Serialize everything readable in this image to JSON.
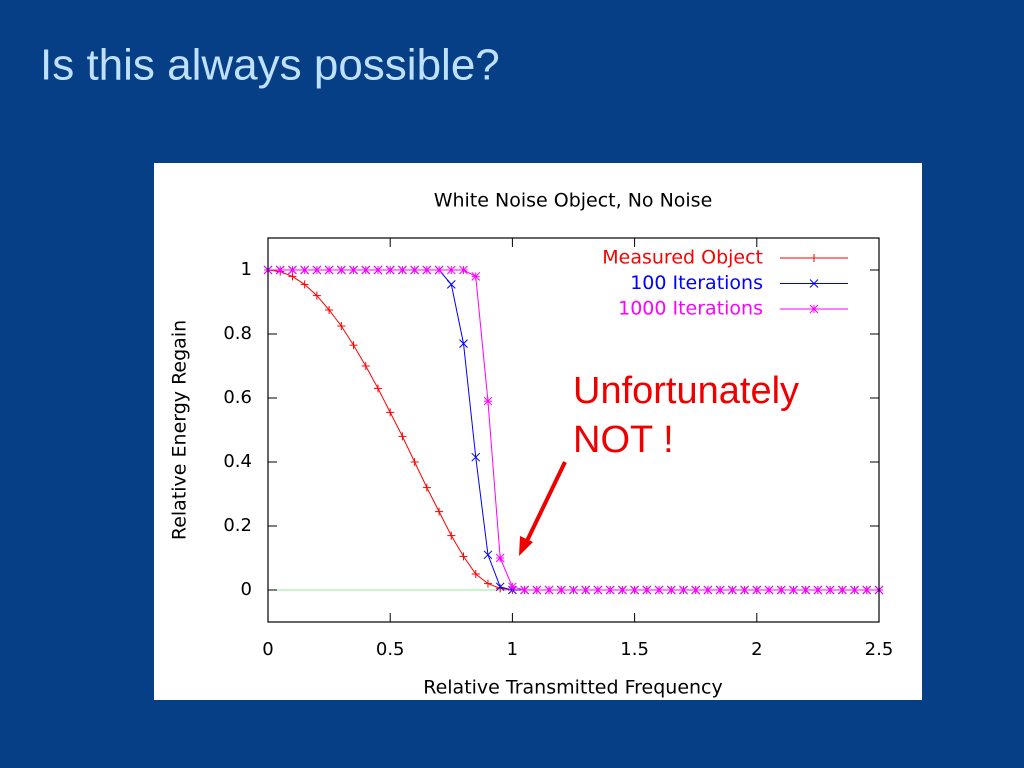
{
  "slide_title": "Is this always possible?",
  "chart_data": {
    "type": "line",
    "title": "White Noise Object, No Noise",
    "x_label": "Relative Transmitted Frequency",
    "y_label": "Relative Energy Regain",
    "x": [
      0,
      0.05,
      0.1,
      0.15,
      0.2,
      0.25,
      0.3,
      0.35,
      0.4,
      0.45,
      0.5,
      0.55,
      0.6,
      0.65,
      0.7,
      0.75,
      0.8,
      0.85,
      0.9,
      0.95,
      1,
      1.05,
      1.1,
      1.15,
      1.2,
      1.25,
      1.3,
      1.35,
      1.4,
      1.45,
      1.5,
      1.55,
      1.6,
      1.65,
      1.7,
      1.75,
      1.8,
      1.85,
      1.9,
      1.95,
      2,
      2.05,
      2.1,
      2.15,
      2.2,
      2.25,
      2.3,
      2.35,
      2.4,
      2.45,
      2.5
    ],
    "series": [
      {
        "name": "Measured Object",
        "color": "#ff0000",
        "marker": "plus",
        "values": [
          1,
          0.995,
          0.98,
          0.955,
          0.92,
          0.875,
          0.825,
          0.765,
          0.7,
          0.63,
          0.555,
          0.48,
          0.4,
          0.32,
          0.245,
          0.17,
          0.105,
          0.05,
          0.02,
          0.005,
          0,
          0,
          0,
          0,
          0,
          0,
          0,
          0,
          0,
          0,
          0,
          0,
          0,
          0,
          0,
          0,
          0,
          0,
          0,
          0,
          0,
          0,
          0,
          0,
          0,
          0,
          0,
          0,
          0,
          0,
          0
        ]
      },
      {
        "name": "100 Iterations",
        "color": "#0000ff",
        "marker": "cross",
        "values": [
          1,
          1,
          1,
          1,
          1,
          1,
          1,
          1,
          1,
          1,
          1,
          1,
          1,
          1,
          1,
          0.955,
          0.77,
          0.415,
          0.11,
          0.01,
          0,
          0,
          0,
          0,
          0,
          0,
          0,
          0,
          0,
          0,
          0,
          0,
          0,
          0,
          0,
          0,
          0,
          0,
          0,
          0,
          0,
          0,
          0,
          0,
          0,
          0,
          0,
          0,
          0,
          0,
          0
        ]
      },
      {
        "name": "1000 Iterations",
        "color": "#ff00ff",
        "marker": "star",
        "values": [
          1,
          1,
          1,
          1,
          1,
          1,
          1,
          1,
          1,
          1,
          1,
          1,
          1,
          1,
          1,
          1,
          1,
          0.98,
          0.59,
          0.1,
          0.01,
          0,
          0,
          0,
          0,
          0,
          0,
          0,
          0,
          0,
          0,
          0,
          0,
          0,
          0,
          0,
          0,
          0,
          0,
          0,
          0,
          0,
          0,
          0,
          0,
          0,
          0,
          0,
          0,
          0,
          0
        ]
      }
    ],
    "xlim": [
      0,
      2.5
    ],
    "xticks": [
      0,
      0.5,
      1,
      1.5,
      2,
      2.5
    ],
    "ylim": [
      -0.1,
      1.1
    ],
    "yticks": [
      0,
      0.2,
      0.4,
      0.6,
      0.8,
      1
    ],
    "zero_line_color": "#90ee90",
    "legend": "top-right",
    "annotation": {
      "lines": [
        "Unfortunately",
        "NOT !"
      ],
      "color": "#ee0000"
    }
  }
}
